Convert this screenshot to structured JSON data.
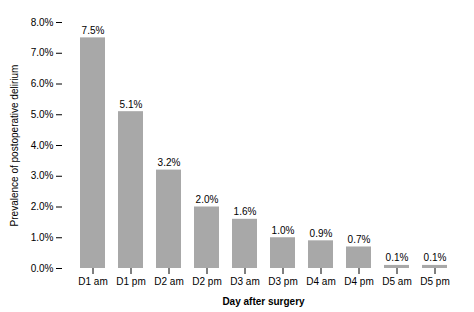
{
  "chart_data": {
    "type": "bar",
    "categories": [
      "D1 am",
      "D1 pm",
      "D2 am",
      "D2 pm",
      "D3 am",
      "D3 pm",
      "D4 am",
      "D4 pm",
      "D5 am",
      "D5 pm"
    ],
    "values": [
      7.5,
      5.1,
      3.2,
      2.0,
      1.6,
      1.0,
      0.9,
      0.7,
      0.1,
      0.1
    ],
    "value_labels": [
      "7.5%",
      "5.1%",
      "3.2%",
      "2.0%",
      "1.6%",
      "1.0%",
      "0.9%",
      "0.7%",
      "0.1%",
      "0.1%"
    ],
    "data_labels": true,
    "color": "#a8a8a8",
    "xlabel": "Day after surgery",
    "ylabel": "Prevalence of postoperative delirium",
    "ylim": [
      0,
      8.0
    ],
    "yticks": [
      {
        "value": 0.0,
        "label": "0.0%"
      },
      {
        "value": 1.0,
        "label": "1.0%"
      },
      {
        "value": 2.0,
        "label": "2.0%"
      },
      {
        "value": 3.0,
        "label": "3.0%"
      },
      {
        "value": 4.0,
        "label": "4.0%"
      },
      {
        "value": 5.0,
        "label": "5.0%"
      },
      {
        "value": 6.0,
        "label": "6.0%"
      },
      {
        "value": 7.0,
        "label": "7.0%"
      },
      {
        "value": 8.0,
        "label": "8.0%"
      }
    ]
  }
}
